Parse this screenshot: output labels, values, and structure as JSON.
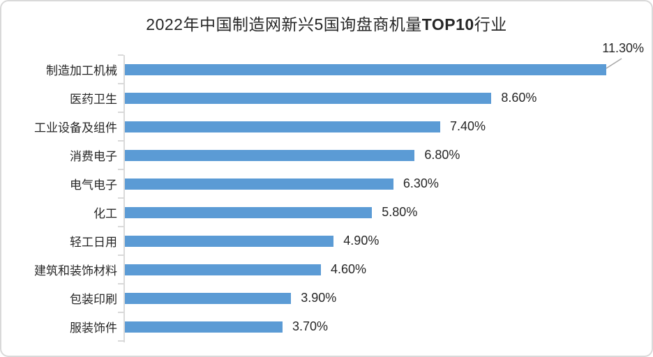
{
  "title": {
    "part1": "2022年中国制造网新兴5国询盘商机量",
    "part2": "TOP10",
    "part3": "行业"
  },
  "chart_data": {
    "type": "bar",
    "orientation": "horizontal",
    "title": "2022年中国制造网新兴5国询盘商机量TOP10行业",
    "categories": [
      "制造加工机械",
      "医药卫生",
      "工业设备及组件",
      "消费电子",
      "电气电子",
      "化工",
      "轻工日用",
      "建筑和装饰材料",
      "包装印刷",
      "服装饰件"
    ],
    "values": [
      11.3,
      8.6,
      7.4,
      6.8,
      6.3,
      5.8,
      4.9,
      4.6,
      3.9,
      3.7
    ],
    "labels": [
      "11.30%",
      "8.60%",
      "7.40%",
      "6.80%",
      "6.30%",
      "5.80%",
      "4.90%",
      "4.60%",
      "3.90%",
      "3.70%"
    ],
    "xlabel": "",
    "ylabel": "",
    "xlim": [
      0,
      12
    ],
    "grid": false,
    "legend": false,
    "bar_color": "#5b9bd5",
    "axis_color": "#d9d9d9",
    "leader_line_color": "#a6a6a6",
    "callout": {
      "index": 0,
      "label": "11.30%"
    }
  }
}
